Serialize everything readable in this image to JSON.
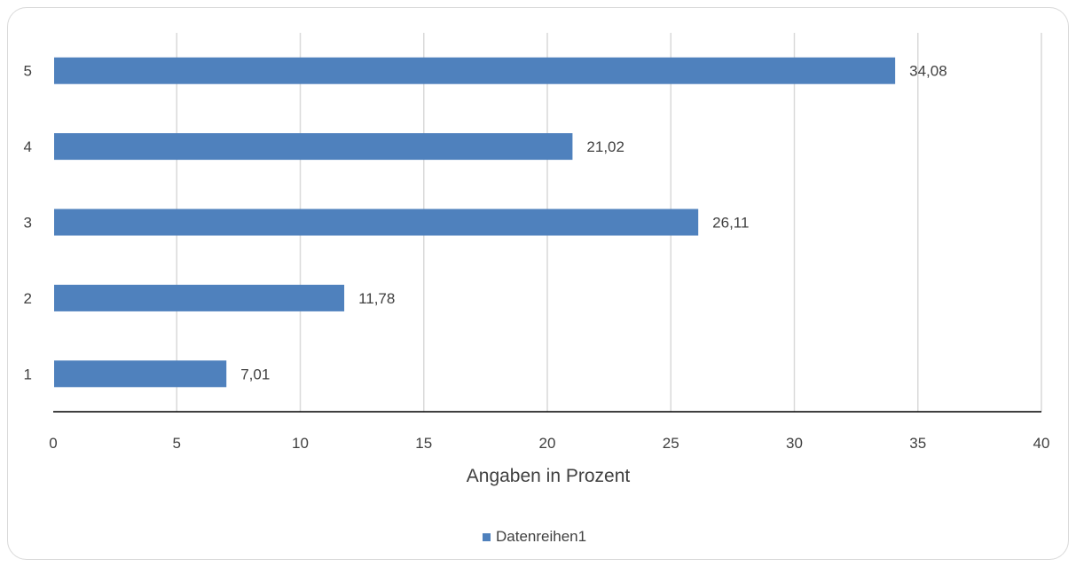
{
  "colors": {
    "bar": "#4f81bd",
    "grid": "#d9d9d9",
    "axis": "#000000",
    "text": "#404040"
  },
  "chart_data": {
    "type": "bar",
    "orientation": "horizontal",
    "categories": [
      "1",
      "2",
      "3",
      "4",
      "5"
    ],
    "series": [
      {
        "name": "Datenreihen1",
        "values": [
          7.01,
          11.78,
          26.11,
          21.02,
          34.08
        ]
      }
    ],
    "data_labels": [
      "7,01",
      "11,78",
      "26,11",
      "21,02",
      "34,08"
    ],
    "xlabel": "Angaben in Prozent",
    "ylabel": "",
    "xlim": [
      0,
      40
    ],
    "x_ticks": [
      0,
      5,
      10,
      15,
      20,
      25,
      30,
      35,
      40
    ],
    "grid": true,
    "legend": "bottom"
  }
}
